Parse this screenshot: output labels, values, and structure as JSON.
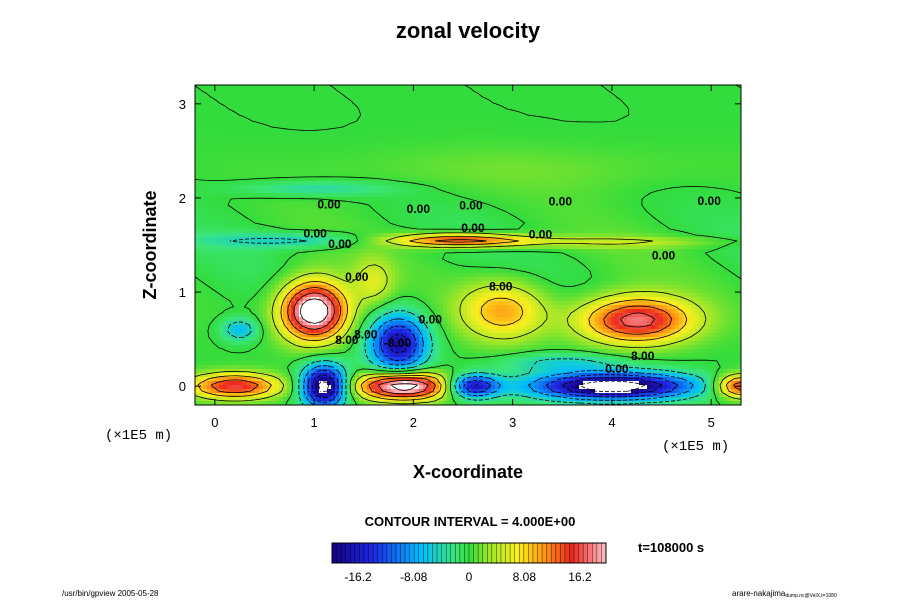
{
  "chart_data": {
    "type": "heatmap",
    "title": "zonal velocity",
    "xlabel": "X-coordinate",
    "ylabel": "Z-coordinate",
    "xunit": "(×1E5 m)",
    "xlim": [
      -0.2,
      5.3
    ],
    "ylim": [
      -0.2,
      3.2
    ],
    "xticks": [
      0,
      1,
      2,
      3,
      4,
      5
    ],
    "yticks": [
      0,
      1,
      2,
      3
    ],
    "contour_interval_text": "CONTOUR INTERVAL = 4.000E+00",
    "time_text": "t=108000 s",
    "colorbar": {
      "range": [
        -20,
        20
      ],
      "ticks": [
        -16.2,
        -8.08,
        0,
        8.08,
        16.2
      ],
      "tick_labels": [
        "-16.2",
        "-8.08",
        "0",
        "8.08",
        "16.2"
      ]
    },
    "contour_labels": [
      {
        "x": 1.15,
        "z": 1.93,
        "text": "0.00"
      },
      {
        "x": 2.05,
        "z": 1.88,
        "text": "0.00"
      },
      {
        "x": 2.58,
        "z": 1.92,
        "text": "0.00"
      },
      {
        "x": 3.48,
        "z": 1.96,
        "text": "0.00"
      },
      {
        "x": 4.98,
        "z": 1.97,
        "text": "0.00"
      },
      {
        "x": 1.01,
        "z": 1.62,
        "text": "0.00"
      },
      {
        "x": 2.6,
        "z": 1.68,
        "text": "0.00"
      },
      {
        "x": 3.28,
        "z": 1.61,
        "text": "0.00"
      },
      {
        "x": 1.26,
        "z": 1.51,
        "text": "0.00"
      },
      {
        "x": 4.52,
        "z": 1.39,
        "text": "0.00"
      },
      {
        "x": 1.43,
        "z": 1.16,
        "text": "0.00"
      },
      {
        "x": 2.88,
        "z": 1.06,
        "text": "8.00"
      },
      {
        "x": 2.17,
        "z": 0.71,
        "text": "0.00"
      },
      {
        "x": 1.33,
        "z": 0.49,
        "text": "8.00"
      },
      {
        "x": 1.52,
        "z": 0.55,
        "text": "8.00"
      },
      {
        "x": 1.84,
        "z": 0.46,
        "text": "-8.00"
      },
      {
        "x": 4.31,
        "z": 0.32,
        "text": "8.00"
      },
      {
        "x": 4.05,
        "z": 0.18,
        "text": "0.00"
      }
    ],
    "features": [
      {
        "kind": "jet",
        "x": 2.4,
        "z": 1.55,
        "peak": 14
      },
      {
        "kind": "vortex",
        "x": 1.0,
        "z": 0.8,
        "peak": 22
      },
      {
        "kind": "vortex",
        "x": 4.25,
        "z": 0.7,
        "peak": 17
      },
      {
        "kind": "vortex",
        "x": 2.9,
        "z": 0.8,
        "peak": 10
      },
      {
        "kind": "vortex",
        "x": 1.8,
        "z": 0.4,
        "peak": -18
      },
      {
        "kind": "surface",
        "x": 0.2,
        "z": 0.0,
        "peak": 15
      },
      {
        "kind": "surface",
        "x": 1.9,
        "z": 0.0,
        "peak": 22
      },
      {
        "kind": "surface",
        "x": 2.6,
        "z": 0.0,
        "peak": -17
      },
      {
        "kind": "surface",
        "x": 4.0,
        "z": 0.0,
        "peak": -23
      },
      {
        "kind": "surface",
        "x": 1.1,
        "z": 0.0,
        "peak": -22
      }
    ]
  },
  "footer": {
    "left": "/usr/bin/gpview 2005-05-28",
    "right": "arare-nakajima",
    "right_sub": "dump.nc@VelX,t=1080"
  }
}
